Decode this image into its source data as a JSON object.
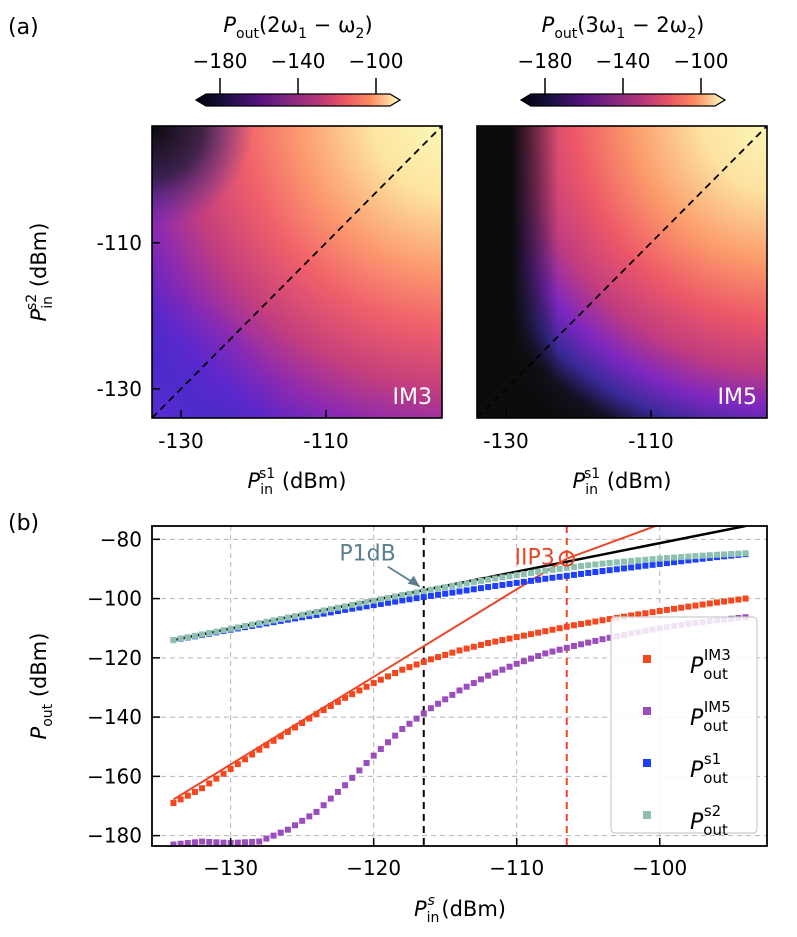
{
  "chart_data": [
    {
      "type": "heatmap",
      "panel_label": "(a)",
      "inset_label": "IM3",
      "colorbar": {
        "title_main": "P",
        "title_sub": "out",
        "title_rest": "(2ω",
        "title_sub1": "1",
        "title_mid": " − ω",
        "title_sub2": "2",
        "title_end": ")",
        "ticks": [
          "−180",
          "−140",
          "−100"
        ],
        "range": [
          -190,
          -94
        ]
      },
      "x_range": [
        -134,
        -94
      ],
      "y_range": [
        -134,
        -94
      ],
      "xticks": [
        -130,
        -110
      ],
      "xtick_labels": [
        "-130",
        "-110"
      ],
      "yticks": [
        -130,
        -110
      ],
      "ytick_labels": [
        "-130",
        "-110"
      ],
      "xlabel_main": "P",
      "xlabel_sub": "in",
      "xlabel_sup": "s1",
      "xlabel_unit": " (dBm)",
      "ylabel_main": "P",
      "ylabel_sub": "in",
      "ylabel_sup": "s2",
      "ylabel_unit": " (dBm)",
      "diagonal": "dashed y = x"
    },
    {
      "type": "heatmap",
      "inset_label": "IM5",
      "colorbar": {
        "title_main": "P",
        "title_sub": "out",
        "title_rest": "(3ω",
        "title_sub1": "1",
        "title_mid": " − 2ω",
        "title_sub2": "2",
        "title_end": ")",
        "ticks": [
          "−180",
          "−140",
          "−100"
        ],
        "range": [
          -190,
          -94
        ]
      },
      "x_range": [
        -134,
        -94
      ],
      "y_range": [
        -134,
        -94
      ],
      "xticks": [
        -130,
        -110
      ],
      "xtick_labels": [
        "-130",
        "-110"
      ],
      "xlabel_main": "P",
      "xlabel_sub": "in",
      "xlabel_sup": "s1",
      "xlabel_unit": " (dBm)",
      "diagonal": "dashed y = x"
    },
    {
      "type": "scatter",
      "panel_label": "(b)",
      "x_range": [
        -135.5,
        -92.5
      ],
      "y_range": [
        -183.5,
        -75.5
      ],
      "xticks": [
        -130,
        -120,
        -110,
        -100
      ],
      "xtick_labels": [
        "−130",
        "−120",
        "−110",
        "−100"
      ],
      "yticks": [
        -180,
        -160,
        -140,
        -120,
        -100,
        -80
      ],
      "ytick_labels": [
        "−180",
        "−160",
        "−140",
        "−120",
        "−100",
        "−80"
      ],
      "xlabel_main": "P",
      "xlabel_sub": "in",
      "xlabel_sup": "s",
      "xlabel_unit": " (dBm)",
      "ylabel_main": "P",
      "ylabel_sub": "out",
      "ylabel_unit": " (dBm)",
      "grid": true,
      "annotations": {
        "p1db_label": "P1dB",
        "p1db_x": -116.5,
        "p1db_y": -98,
        "iip3_label": "IIP3",
        "iip3_x": -106.5,
        "iip3_y": -86.5
      },
      "lines": [
        {
          "name": "linear fundamental",
          "color": "#000000",
          "points": [
            [
              -134,
              -114
            ],
            [
              -94,
              -75.5
            ]
          ]
        },
        {
          "name": "IM3 extrapolation",
          "color": "#e8472a",
          "points": [
            [
              -134,
              -167.8
            ],
            [
              -106.5,
              -86.5
            ],
            [
              -100.3,
              -75.5
            ]
          ]
        }
      ],
      "series": [
        {
          "name_main": "P",
          "name_sub": "out",
          "name_sup": "IM3",
          "color": "#f5461e",
          "x": [
            -134,
            -132,
            -130,
            -128,
            -126,
            -124,
            -122,
            -120,
            -118,
            -116,
            -114,
            -112,
            -110,
            -108,
            -106,
            -104,
            -102,
            -100,
            -98,
            -96,
            -94
          ],
          "y": [
            -169,
            -164,
            -157.5,
            -151,
            -145,
            -139,
            -133.5,
            -128.5,
            -124,
            -120.5,
            -117.5,
            -115,
            -113,
            -111,
            -109,
            -107.3,
            -105.7,
            -104.2,
            -102.7,
            -101.3,
            -100
          ]
        },
        {
          "name_main": "P",
          "name_sub": "out",
          "name_sup": "IM5",
          "color": "#9b4dbd",
          "x": [
            -134,
            -132,
            -130,
            -128,
            -126,
            -124,
            -122,
            -120,
            -118,
            -116,
            -114,
            -112,
            -110,
            -108,
            -106,
            -104,
            -102,
            -100,
            -98,
            -96,
            -94
          ],
          "y": [
            -183,
            -182,
            -182.5,
            -182,
            -178,
            -172,
            -163,
            -153,
            -144,
            -137,
            -131,
            -126,
            -122,
            -118.5,
            -116,
            -113.7,
            -111.8,
            -110,
            -108.5,
            -107.3,
            -106.3
          ]
        },
        {
          "name_main": "P",
          "name_sub": "out",
          "name_sup": "s1",
          "color": "#1f3fff",
          "x": [
            -134,
            -132,
            -130,
            -128,
            -126,
            -124,
            -122,
            -120,
            -118,
            -116,
            -114,
            -112,
            -110,
            -108,
            -106,
            -104,
            -102,
            -100,
            -98,
            -96,
            -94
          ],
          "y": [
            -114,
            -112.3,
            -110.5,
            -108.8,
            -107.1,
            -105.5,
            -103.8,
            -102.2,
            -100.6,
            -99.1,
            -97.6,
            -96.1,
            -94.7,
            -93.3,
            -92.0,
            -90.7,
            -89.5,
            -88.3,
            -87.1,
            -86.0,
            -85.0
          ]
        },
        {
          "name_main": "P",
          "name_sub": "out",
          "name_sup": "s2",
          "color": "#8fc1b0",
          "x": [
            -134,
            -132,
            -130,
            -128,
            -126,
            -124,
            -122,
            -120,
            -118,
            -116,
            -114,
            -112,
            -110,
            -108,
            -106,
            -104,
            -102,
            -100,
            -98,
            -96,
            -94
          ],
          "y": [
            -114,
            -112.1,
            -110.2,
            -108.3,
            -106.4,
            -104.5,
            -102.6,
            -100.7,
            -98.8,
            -97.0,
            -95.3,
            -93.6,
            -92.1,
            -90.6,
            -89.3,
            -88.2,
            -87.3,
            -86.5,
            -85.8,
            -85.2,
            -84.7
          ]
        }
      ],
      "legend_position": "bottom-right"
    }
  ]
}
